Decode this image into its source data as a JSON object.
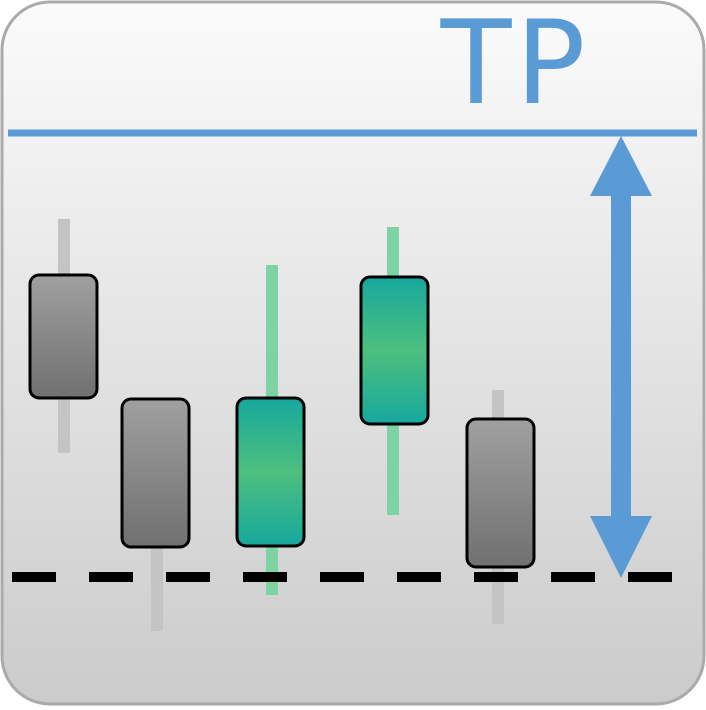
{
  "icon": {
    "label": "TP",
    "colors": {
      "accent_blue": "#5b9bd5",
      "bear_body_top": "#9e9e9e",
      "bear_body_bottom": "#727272",
      "bear_wick": "#c4c4c4",
      "bull_body_top": "#1aab9f",
      "bull_body_mid": "#4ec080",
      "bull_wick": "#7dd3a4",
      "stop_line": "#000000",
      "background_top": "#fbfbfb",
      "background_bottom": "#cbcbcb",
      "border": "#aaaaaa"
    },
    "candles": [
      {
        "type": "bearish"
      },
      {
        "type": "bearish"
      },
      {
        "type": "bullish"
      },
      {
        "type": "bullish"
      },
      {
        "type": "bearish"
      }
    ]
  }
}
